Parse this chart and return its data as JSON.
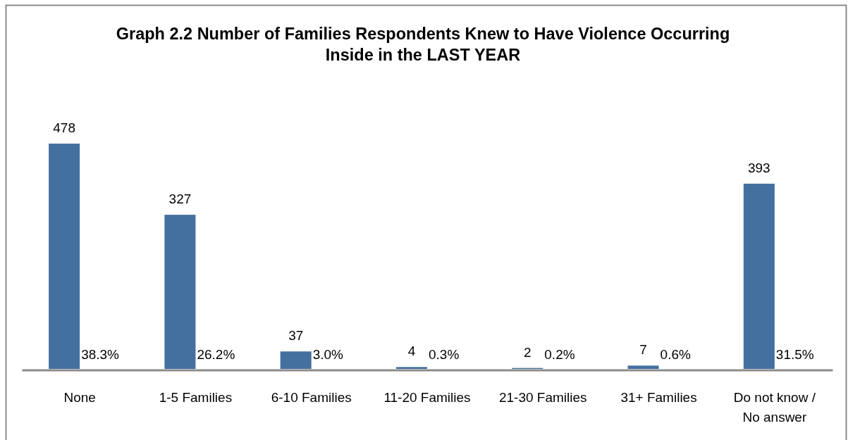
{
  "chart_data": {
    "type": "bar",
    "title": "Graph 2.2 Number of Families Respondents Knew to Have Violence Occurring Inside in the LAST YEAR",
    "categories": [
      "None",
      "1-5 Families",
      "6-10 Families",
      "11-20 Families",
      "21-30 Families",
      "31+ Families",
      "Do not know / No answer"
    ],
    "values": [
      478,
      327,
      37,
      4,
      2,
      7,
      393
    ],
    "color": "#44709f",
    "data_labels": true,
    "annotations": [
      {
        "text": "38.3%",
        "x": "None",
        "y": 0
      },
      {
        "text": "26.2%",
        "x": "1-5 Families",
        "y": 0
      },
      {
        "text": "3.0%",
        "x": "6-10 Families",
        "y": 0
      },
      {
        "text": "0.3%",
        "x": "11-20 Families",
        "y": 0
      },
      {
        "text": "0.2%",
        "x": "21-30 Families",
        "y": 0
      },
      {
        "text": "0.6%",
        "x": "31+ Families",
        "y": 0
      },
      {
        "text": "31.5%",
        "x": "Do not know / No answer",
        "y": 0
      }
    ]
  }
}
